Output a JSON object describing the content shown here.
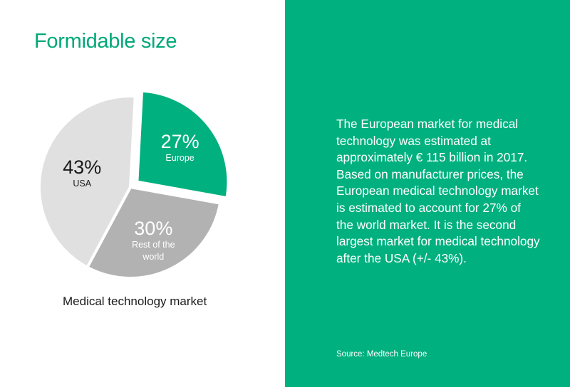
{
  "title": "Formidable size",
  "chart_data": {
    "type": "pie",
    "title": "Medical technology market",
    "slices": [
      {
        "label": "Europe",
        "value": 27,
        "value_label": "27%",
        "color": "#00b07e",
        "exploded": true
      },
      {
        "label": "Rest of the world",
        "value": 30,
        "value_label": "30%",
        "color": "#b2b2b2",
        "exploded": false
      },
      {
        "label": "USA",
        "value": 43,
        "value_label": "43%",
        "color": "#e0e0e0",
        "exploded": false
      }
    ]
  },
  "colors": {
    "accent": "#00b07e",
    "title": "#00a878"
  },
  "description": "The European market for medical\ntechnology was estimated at\napproximately € 115 billion in 2017.\nBased on manufacturer prices, the\nEuropean medical technology market\nis estimated to account for 27% of\nthe world market. It is the second\nlargest market for medical technology\nafter the USA (+/- 43%).",
  "source": "Source: Medtech Europe"
}
